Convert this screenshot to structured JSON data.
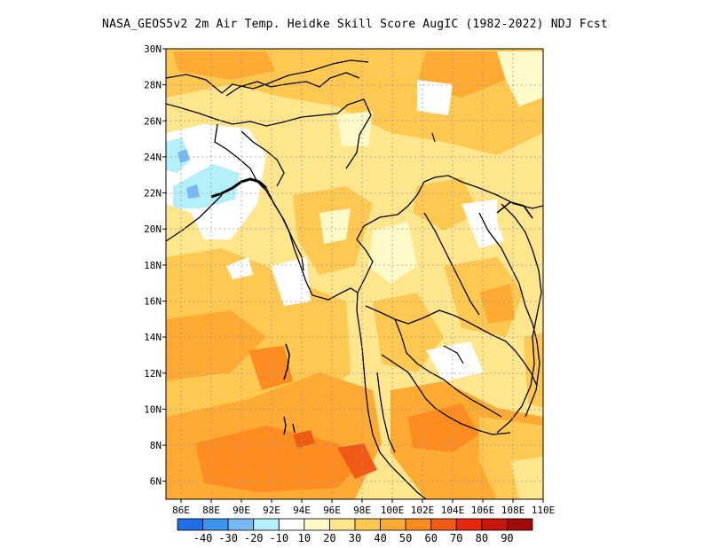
{
  "title": "NASA_GEOS5v2  2m Air Temp. Heidke Skill Score AugIC (1982-2022) NDJ Fcst",
  "map": {
    "lon_range": [
      85,
      110
    ],
    "lat_range": [
      5,
      30
    ],
    "x_ticks": [
      "86E",
      "88E",
      "90E",
      "92E",
      "94E",
      "96E",
      "98E",
      "100E",
      "102E",
      "104E",
      "106E",
      "108E",
      "110E"
    ],
    "y_ticks": [
      "6N",
      "8N",
      "10N",
      "12N",
      "14N",
      "16N",
      "18N",
      "20N",
      "22N",
      "24N",
      "26N",
      "28N",
      "30N"
    ]
  },
  "colorbar": {
    "colors": [
      "#1e6ee8",
      "#3c96f0",
      "#78b9f5",
      "#b4f0fa",
      "#ffffff",
      "#fffac8",
      "#ffe68c",
      "#ffc850",
      "#ffaa32",
      "#ff8c1e",
      "#f05a14",
      "#e6280a",
      "#c8140a",
      "#a00a0a"
    ],
    "labels": [
      "-40",
      "-30",
      "-20",
      "-10",
      "10",
      "20",
      "30",
      "40",
      "50",
      "60",
      "70",
      "80",
      "90"
    ]
  }
}
